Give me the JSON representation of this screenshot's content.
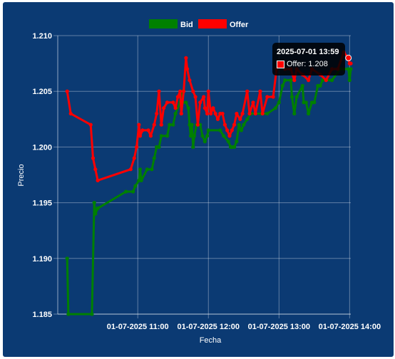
{
  "chart_data": {
    "type": "line",
    "xlabel": "Fecha",
    "ylabel": "Precio",
    "ylim": [
      1.185,
      1.21
    ],
    "y_ticks": [
      "1.185",
      "1.190",
      "1.195",
      "1.200",
      "1.205",
      "1.210"
    ],
    "x_ticks": [
      "01-07-2025 11:00",
      "01-07-2025 12:00",
      "01-07-2025 13:00",
      "01-07-2025 14:00"
    ],
    "legend_position": "top",
    "grid": true,
    "series": [
      {
        "name": "Bid",
        "color": "#008000",
        "points": [
          [
            "10:00",
            1.19
          ],
          [
            "10:01",
            1.185
          ],
          [
            "10:21",
            1.185
          ],
          [
            "10:23",
            1.195
          ],
          [
            "10:24",
            1.194
          ],
          [
            "10:26",
            1.1945
          ],
          [
            "10:50",
            1.196
          ],
          [
            "10:56",
            1.196
          ],
          [
            "10:58",
            1.1965
          ],
          [
            "11:01",
            1.197
          ],
          [
            "11:02",
            1.198
          ],
          [
            "11:03",
            1.197
          ],
          [
            "11:08",
            1.198
          ],
          [
            "11:12",
            1.198
          ],
          [
            "11:14",
            1.199
          ],
          [
            "11:16",
            1.2
          ],
          [
            "11:18",
            1.2
          ],
          [
            "11:20",
            1.201
          ],
          [
            "11:25",
            1.201
          ],
          [
            "11:27",
            1.202
          ],
          [
            "11:30",
            1.202
          ],
          [
            "11:32",
            1.203
          ],
          [
            "11:36",
            1.204
          ],
          [
            "11:37",
            1.205
          ],
          [
            "11:38",
            1.204
          ],
          [
            "11:41",
            1.204
          ],
          [
            "11:43",
            1.2035
          ],
          [
            "11:44",
            1.202
          ],
          [
            "11:45",
            1.201
          ],
          [
            "11:46",
            1.202
          ],
          [
            "11:47",
            1.2
          ],
          [
            "11:48",
            1.201
          ],
          [
            "11:50",
            1.202
          ],
          [
            "11:53",
            1.202
          ],
          [
            "11:55",
            1.201
          ],
          [
            "11:57",
            1.2005
          ],
          [
            "11:59",
            1.201
          ],
          [
            "12:00",
            1.2015
          ],
          [
            "12:10",
            1.2015
          ],
          [
            "12:13",
            1.201
          ],
          [
            "12:17",
            1.2005
          ],
          [
            "12:19",
            1.2
          ],
          [
            "12:20",
            1.2
          ],
          [
            "12:22",
            1.2
          ],
          [
            "12:24",
            1.2005
          ],
          [
            "12:26",
            1.202
          ],
          [
            "12:28",
            1.2015
          ],
          [
            "12:30",
            1.202
          ],
          [
            "12:33",
            1.2025
          ],
          [
            "12:36",
            1.203
          ],
          [
            "12:45",
            1.203
          ],
          [
            "12:50",
            1.203
          ],
          [
            "12:57",
            1.2035
          ],
          [
            "13:00",
            1.204
          ],
          [
            "13:03",
            1.2055
          ],
          [
            "13:05",
            1.206
          ],
          [
            "13:10",
            1.206
          ],
          [
            "13:11",
            1.2045
          ],
          [
            "13:13",
            1.203
          ],
          [
            "13:15",
            1.2045
          ],
          [
            "13:20",
            1.2055
          ],
          [
            "13:21",
            1.204
          ],
          [
            "13:23",
            1.204
          ],
          [
            "13:25",
            1.203
          ],
          [
            "13:28",
            1.204
          ],
          [
            "13:30",
            1.204
          ],
          [
            "13:33",
            1.2055
          ],
          [
            "13:35",
            1.2055
          ],
          [
            "13:37",
            1.206
          ],
          [
            "13:45",
            1.206
          ],
          [
            "13:52",
            1.207
          ],
          [
            "13:55",
            1.207
          ],
          [
            "13:59",
            1.207
          ],
          [
            "14:00",
            1.206
          ],
          [
            "14:01",
            1.207
          ]
        ]
      },
      {
        "name": "Offer",
        "color": "#ff0000",
        "points": [
          [
            "10:00",
            1.205
          ],
          [
            "10:03",
            1.203
          ],
          [
            "10:20",
            1.202
          ],
          [
            "10:22",
            1.199
          ],
          [
            "10:24",
            1.198
          ],
          [
            "10:26",
            1.197
          ],
          [
            "10:54",
            1.198
          ],
          [
            "10:57",
            1.199
          ],
          [
            "10:59",
            1.2
          ],
          [
            "11:01",
            1.202
          ],
          [
            "11:02",
            1.201
          ],
          [
            "11:04",
            1.2015
          ],
          [
            "11:09",
            1.2015
          ],
          [
            "11:11",
            1.201
          ],
          [
            "11:14",
            1.202
          ],
          [
            "11:16",
            1.203
          ],
          [
            "11:18",
            1.205
          ],
          [
            "11:20",
            1.202
          ],
          [
            "11:22",
            1.2035
          ],
          [
            "11:25",
            1.204
          ],
          [
            "11:30",
            1.204
          ],
          [
            "11:32",
            1.2035
          ],
          [
            "11:34",
            1.2045
          ],
          [
            "11:36",
            1.205
          ],
          [
            "11:37",
            1.203
          ],
          [
            "11:39",
            1.205
          ],
          [
            "11:41",
            1.208
          ],
          [
            "11:42",
            1.207
          ],
          [
            "11:44",
            1.206
          ],
          [
            "11:47",
            1.205
          ],
          [
            "11:49",
            1.2045
          ],
          [
            "11:51",
            1.202
          ],
          [
            "11:53",
            1.204
          ],
          [
            "11:56",
            1.2045
          ],
          [
            "11:57",
            1.2035
          ],
          [
            "11:59",
            1.203
          ],
          [
            "12:00",
            1.205
          ],
          [
            "12:02",
            1.203
          ],
          [
            "12:04",
            1.2035
          ],
          [
            "12:06",
            1.203
          ],
          [
            "12:08",
            1.2025
          ],
          [
            "12:10",
            1.203
          ],
          [
            "12:12",
            1.203
          ],
          [
            "12:14",
            1.202
          ],
          [
            "12:16",
            1.2015
          ],
          [
            "12:18",
            1.201
          ],
          [
            "12:20",
            1.2015
          ],
          [
            "12:22",
            1.202
          ],
          [
            "12:24",
            1.203
          ],
          [
            "12:27",
            1.2025
          ],
          [
            "12:29",
            1.203
          ],
          [
            "12:33",
            1.205
          ],
          [
            "12:35",
            1.203
          ],
          [
            "12:38",
            1.204
          ],
          [
            "12:40",
            1.203
          ],
          [
            "12:44",
            1.205
          ],
          [
            "12:46",
            1.203
          ],
          [
            "12:50",
            1.2045
          ],
          [
            "12:55",
            1.2045
          ],
          [
            "12:58",
            1.207
          ],
          [
            "13:01",
            1.2075
          ],
          [
            "13:05",
            1.207
          ],
          [
            "13:10",
            1.207
          ],
          [
            "13:13",
            1.206
          ],
          [
            "13:15",
            1.207
          ],
          [
            "13:20",
            1.2065
          ],
          [
            "13:25",
            1.206
          ],
          [
            "13:28",
            1.207
          ],
          [
            "13:35",
            1.2065
          ],
          [
            "13:40",
            1.206
          ],
          [
            "13:45",
            1.207
          ],
          [
            "13:50",
            1.207
          ],
          [
            "13:55",
            1.2085
          ],
          [
            "13:59",
            1.208
          ],
          [
            "14:00",
            1.2075
          ],
          [
            "14:01",
            1.2075
          ]
        ]
      }
    ],
    "tooltip": {
      "title": "2025-07-01 13:59",
      "label": "Offer: 1.208"
    }
  }
}
